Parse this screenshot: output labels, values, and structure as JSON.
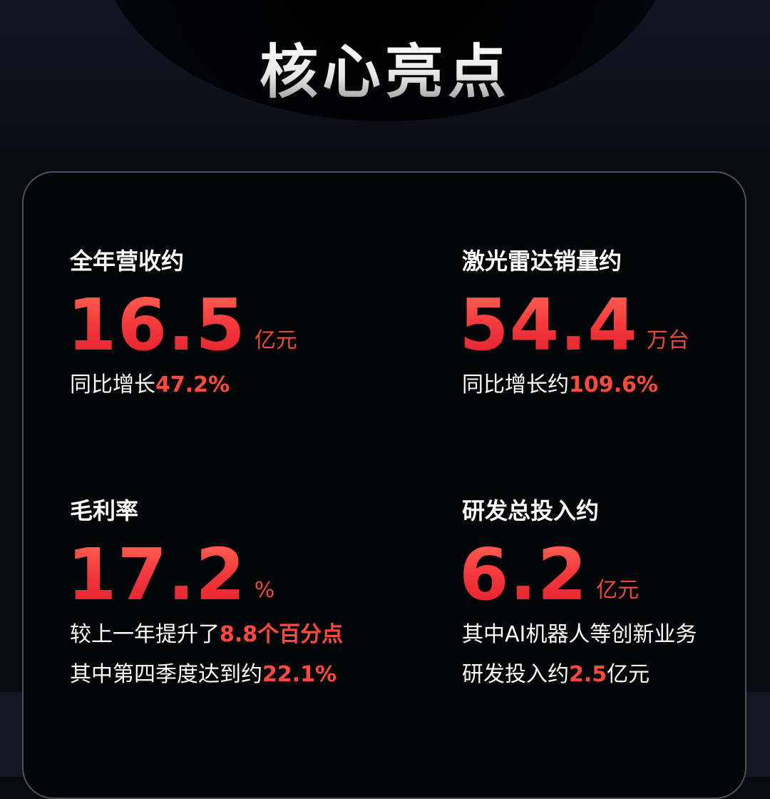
{
  "title": "核心亮点",
  "metrics": [
    {
      "label": "全年营收约",
      "value": "16.5",
      "unit": "亿元",
      "note1_prefix": "同比增长",
      "note1_highlight": "47.2%",
      "note1_suffix": ""
    },
    {
      "label": "激光雷达销量约",
      "value": "54.4",
      "unit": "万台",
      "note1_prefix": "同比增长约",
      "note1_highlight": "109.6%",
      "note1_suffix": ""
    },
    {
      "label": "毛利率",
      "value": "17.2",
      "unit": "%",
      "note1_prefix": "较上一年提升了",
      "note1_highlight": "8.8个百分点",
      "note1_suffix": "",
      "note2_prefix": "其中第四季度达到约",
      "note2_highlight": "22.1%",
      "note2_suffix": ""
    },
    {
      "label": "研发总投入约",
      "value": "6.2",
      "unit": "亿元",
      "note1_prefix": "其中AI机器人等创新业务",
      "note1_highlight": "",
      "note1_suffix": "",
      "note2_prefix": "研发投入约",
      "note2_highlight": "2.5",
      "note2_suffix": "亿元"
    }
  ],
  "colors": {
    "background": "#090b10",
    "card_border": "#4b5160",
    "accent_red": "#ff4a3d",
    "text": "#ffffff"
  }
}
